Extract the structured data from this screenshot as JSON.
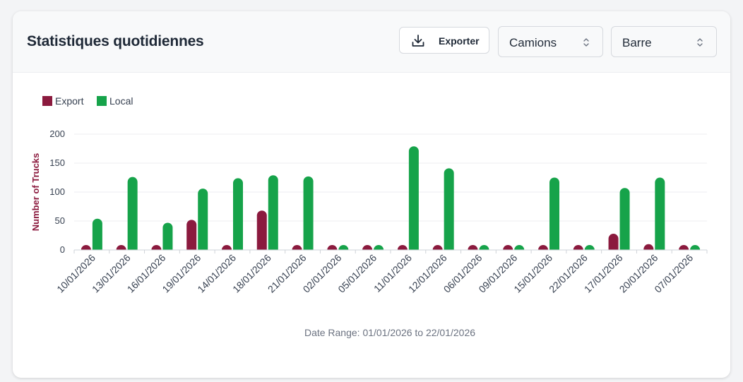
{
  "header": {
    "title": "Statistiques quotidiennes",
    "export_label": "Exporter",
    "export_icon": "download-icon",
    "metric_select": {
      "value": "Camions",
      "icon": "chevron-up-down-icon"
    },
    "chart_type_select": {
      "value": "Barre",
      "icon": "chevron-up-down-icon"
    }
  },
  "footer": {
    "date_range": "Date Range: 01/01/2026 to 22/01/2026"
  },
  "chart_data": {
    "type": "bar",
    "categories": [
      "10/01/2026",
      "13/01/2026",
      "16/01/2026",
      "19/01/2026",
      "14/01/2026",
      "18/01/2026",
      "21/01/2026",
      "02/01/2026",
      "05/01/2026",
      "11/01/2026",
      "12/01/2026",
      "06/01/2026",
      "09/01/2026",
      "15/01/2026",
      "22/01/2026",
      "17/01/2026",
      "20/01/2026",
      "07/01/2026"
    ],
    "series": [
      {
        "name": "Export",
        "color": "#8b1a3e",
        "values": [
          0,
          0,
          0,
          52,
          2,
          68,
          0,
          0,
          0,
          0,
          0,
          0,
          0,
          0,
          0,
          28,
          10,
          0
        ]
      },
      {
        "name": "Local",
        "color": "#16a34a",
        "values": [
          54,
          126,
          47,
          106,
          124,
          129,
          127,
          0,
          0,
          179,
          141,
          0,
          0,
          125,
          2,
          107,
          125,
          0
        ]
      }
    ],
    "ylabel": "Number of Trucks",
    "yticks": [
      0,
      50,
      100,
      150,
      200
    ],
    "ylim": [
      0,
      200
    ],
    "legend": "top-left",
    "grid": true
  }
}
